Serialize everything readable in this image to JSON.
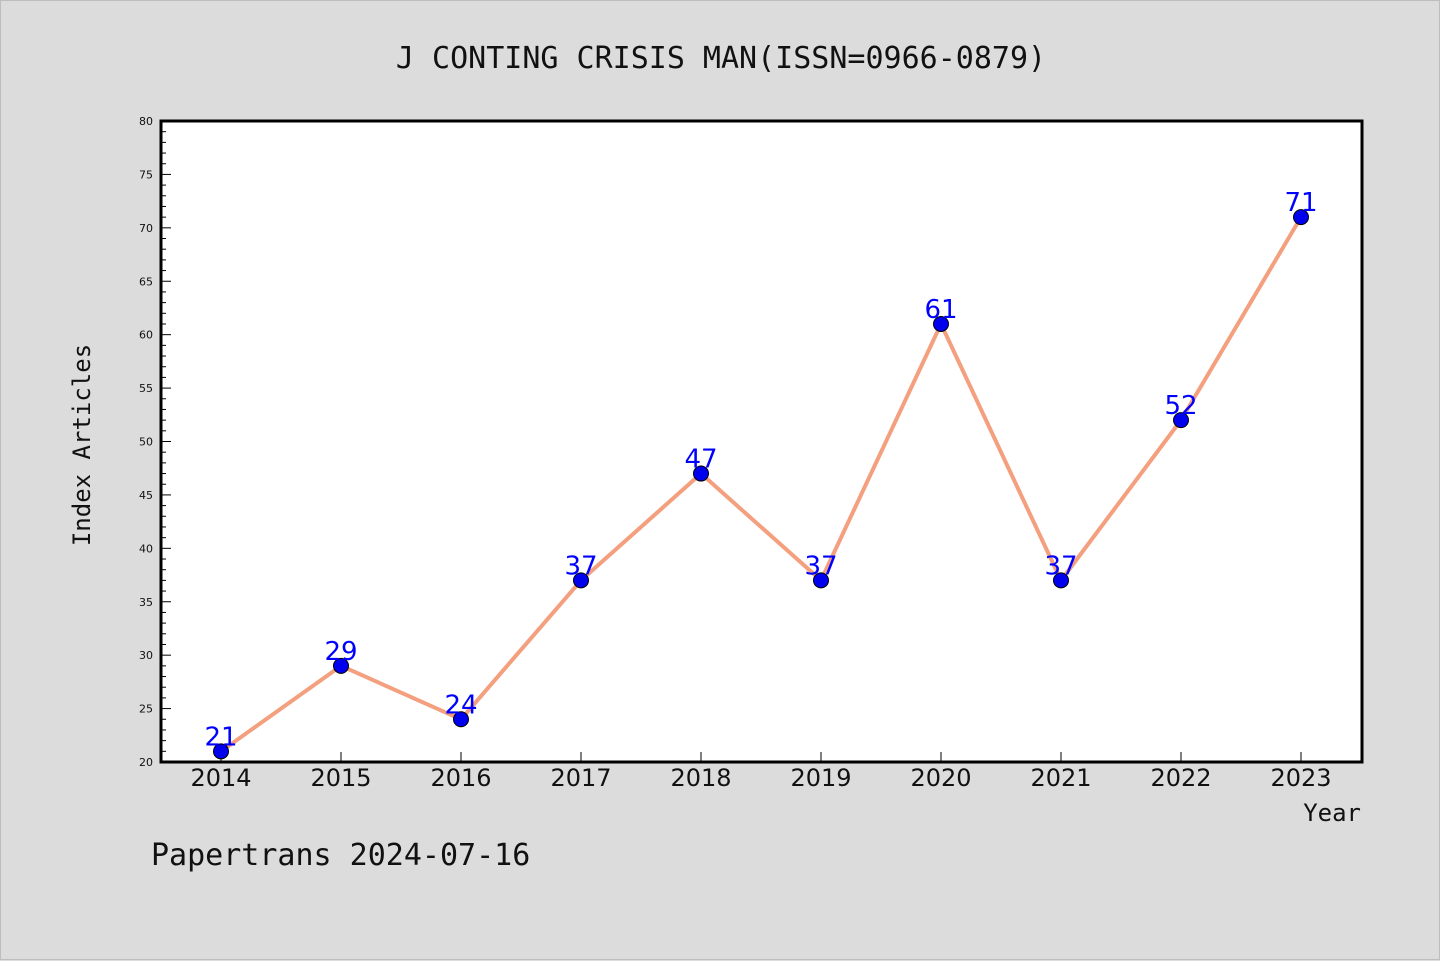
{
  "chart_data": {
    "type": "line",
    "title": "J CONTING CRISIS MAN(ISSN=0966-0879)",
    "xlabel": "Year",
    "ylabel": "Index Articles",
    "categories": [
      "2014",
      "2015",
      "2016",
      "2017",
      "2018",
      "2019",
      "2020",
      "2021",
      "2022",
      "2023"
    ],
    "series": [
      {
        "values": [
          21,
          29,
          24,
          37,
          47,
          37,
          61,
          37,
          52,
          71
        ]
      }
    ],
    "ylim": [
      20,
      80
    ],
    "yticks": [
      20,
      25,
      30,
      35,
      40,
      45,
      50,
      55,
      60,
      65,
      70,
      75,
      80
    ],
    "grid": false,
    "legend": "none",
    "line_color": "#f4a07f",
    "marker_color": "#0000ee",
    "label_color": "#0000ff"
  },
  "footer": "Papertrans 2024-07-16"
}
